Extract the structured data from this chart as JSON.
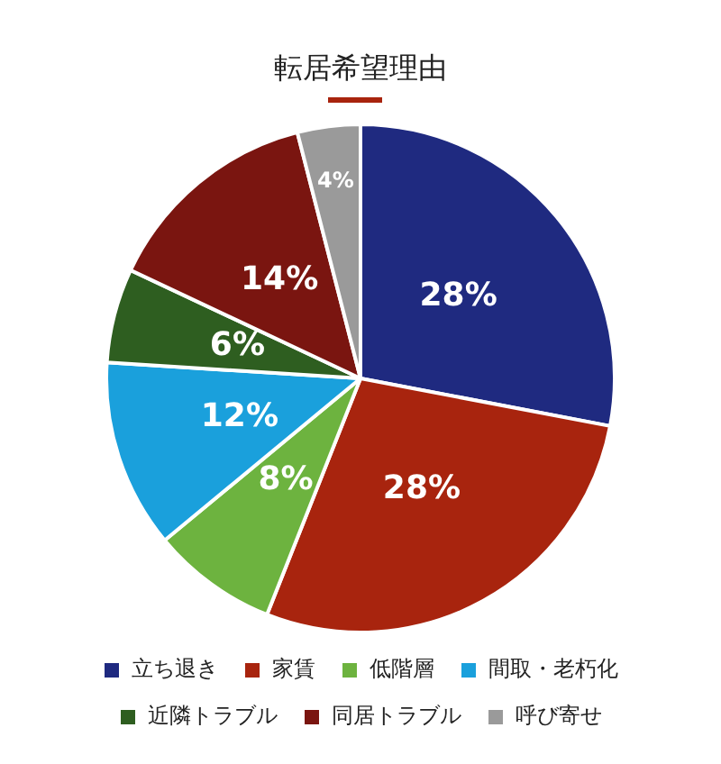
{
  "chart_data": {
    "type": "pie",
    "title": "転居希望理由",
    "categories": [
      "立ち退き",
      "家賃",
      "低階層",
      "間取・老朽化",
      "近隣トラブル",
      "同居トラブル",
      "呼び寄せ"
    ],
    "values": [
      28,
      28,
      8,
      12,
      6,
      14,
      4
    ],
    "value_labels": [
      "28%",
      "28%",
      "8%",
      "12%",
      "6%",
      "14%",
      "4%"
    ],
    "colors": [
      "#1f2a80",
      "#a8240e",
      "#6db33f",
      "#1aa0dc",
      "#2e5e20",
      "#7a1510",
      "#9a9a9a"
    ],
    "legend": "bottom"
  }
}
